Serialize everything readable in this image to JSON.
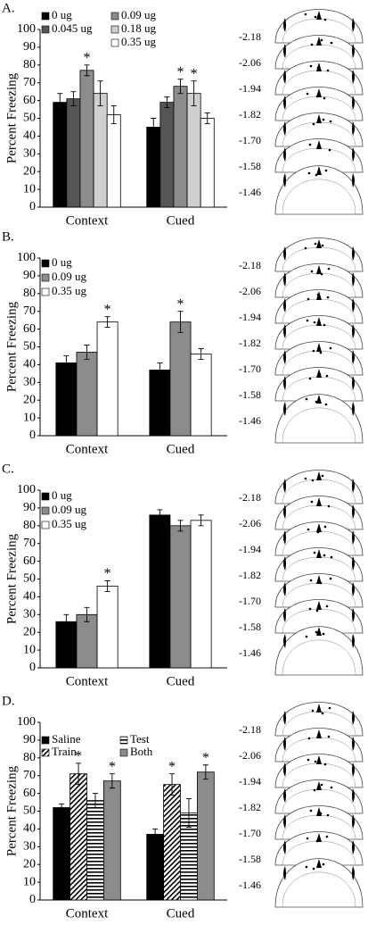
{
  "chart_data": [
    {
      "type": "bar",
      "panel_label": "A.",
      "ylabel": "Percent Freezing",
      "categories": [
        "Context",
        "Cued"
      ],
      "series": [
        {
          "name": "0 ug",
          "color": "#000000",
          "values": [
            59,
            45
          ],
          "errors": [
            5,
            5
          ]
        },
        {
          "name": "0.045 ug",
          "color": "#555555",
          "values": [
            61,
            59
          ],
          "errors": [
            4,
            3
          ]
        },
        {
          "name": "0.09 ug",
          "color": "#8c8c8c",
          "values": [
            77,
            68
          ],
          "errors": [
            3,
            4
          ]
        },
        {
          "name": "0.18 ug",
          "color": "#cfcfcf",
          "values": [
            64,
            64
          ],
          "errors": [
            7,
            7
          ]
        },
        {
          "name": "0.35 ug",
          "color": "#ffffff",
          "values": [
            52,
            50
          ],
          "errors": [
            5,
            3
          ]
        }
      ],
      "ylim": [
        0,
        100
      ],
      "yticks": [
        0,
        10,
        20,
        30,
        40,
        50,
        60,
        70,
        80,
        90,
        100
      ],
      "annotations": [
        {
          "text": "*",
          "category": "Context",
          "series": "0.09 ug"
        },
        {
          "text": "*",
          "category": "Cued",
          "series": "0.09 ug"
        },
        {
          "text": "*",
          "category": "Cued",
          "series": "0.18 ug"
        }
      ],
      "section_labels": [
        "-2.18",
        "-2.06",
        "-1.94",
        "-1.82",
        "-1.70",
        "-1.58",
        "-1.46"
      ]
    },
    {
      "type": "bar",
      "panel_label": "B.",
      "ylabel": "Percent Freezing",
      "categories": [
        "Context",
        "Cued"
      ],
      "series": [
        {
          "name": "0 ug",
          "color": "#000000",
          "values": [
            41,
            37
          ],
          "errors": [
            4,
            4
          ]
        },
        {
          "name": "0.09 ug",
          "color": "#8c8c8c",
          "values": [
            47,
            64
          ],
          "errors": [
            4,
            6
          ]
        },
        {
          "name": "0.35 ug",
          "color": "#ffffff",
          "values": [
            64,
            46
          ],
          "errors": [
            3,
            3
          ]
        }
      ],
      "ylim": [
        0,
        100
      ],
      "yticks": [
        0,
        10,
        20,
        30,
        40,
        50,
        60,
        70,
        80,
        90,
        100
      ],
      "annotations": [
        {
          "text": "*",
          "category": "Context",
          "series": "0.35 ug"
        },
        {
          "text": "*",
          "category": "Cued",
          "series": "0.09 ug"
        }
      ],
      "section_labels": [
        "-2.18",
        "-2.06",
        "-1.94",
        "-1.82",
        "-1.70",
        "-1.58",
        "-1.46"
      ]
    },
    {
      "type": "bar",
      "panel_label": "C.",
      "ylabel": "Percent Freezing",
      "categories": [
        "Context",
        "Cued"
      ],
      "series": [
        {
          "name": "0 ug",
          "color": "#000000",
          "values": [
            26,
            86
          ],
          "errors": [
            4,
            3
          ]
        },
        {
          "name": "0.09 ug",
          "color": "#8c8c8c",
          "values": [
            30,
            80
          ],
          "errors": [
            4,
            3
          ]
        },
        {
          "name": "0.35 ug",
          "color": "#ffffff",
          "values": [
            46,
            83
          ],
          "errors": [
            3,
            3
          ]
        }
      ],
      "ylim": [
        0,
        100
      ],
      "yticks": [
        0,
        10,
        20,
        30,
        40,
        50,
        60,
        70,
        80,
        90,
        100
      ],
      "annotations": [
        {
          "text": "*",
          "category": "Context",
          "series": "0.35 ug"
        }
      ],
      "section_labels": [
        "-2.18",
        "-2.06",
        "-1.94",
        "-1.82",
        "-1.70",
        "-1.58",
        "-1.46"
      ]
    },
    {
      "type": "bar",
      "panel_label": "D.",
      "ylabel": "Percent Freezing",
      "categories": [
        "Context",
        "Cued"
      ],
      "series": [
        {
          "name": "Saline",
          "color": "#000000",
          "values": [
            52,
            37
          ],
          "errors": [
            2,
            3
          ]
        },
        {
          "name": "Train",
          "color": "#000000",
          "pattern": "diagonal",
          "values": [
            71,
            65
          ],
          "errors": [
            6,
            6
          ]
        },
        {
          "name": "Test",
          "color": "#000000",
          "pattern": "horizontal",
          "values": [
            56,
            49
          ],
          "errors": [
            4,
            8
          ]
        },
        {
          "name": "Both",
          "color": "#8c8c8c",
          "values": [
            67,
            72
          ],
          "errors": [
            4,
            4
          ]
        }
      ],
      "ylim": [
        0,
        100
      ],
      "yticks": [
        0,
        10,
        20,
        30,
        40,
        50,
        60,
        70,
        80,
        90,
        100
      ],
      "annotations": [
        {
          "text": "*",
          "category": "Context",
          "series": "Train"
        },
        {
          "text": "*",
          "category": "Context",
          "series": "Both"
        },
        {
          "text": "*",
          "category": "Cued",
          "series": "Train"
        },
        {
          "text": "*",
          "category": "Cued",
          "series": "Both"
        }
      ],
      "section_labels": [
        "-2.18",
        "-2.06",
        "-1.94",
        "-1.82",
        "-1.70",
        "-1.58",
        "-1.46"
      ]
    }
  ]
}
